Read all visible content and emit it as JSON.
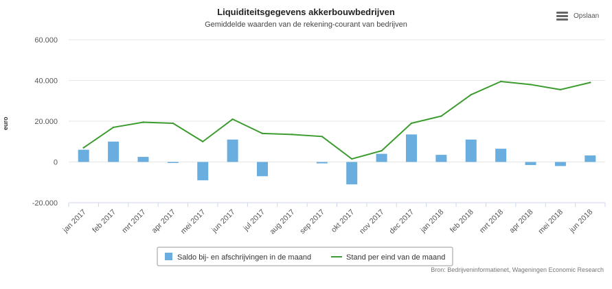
{
  "chart_data": {
    "type": "bar",
    "title": "Liquiditeitsgegevens akkerbouwbedrijven",
    "subtitle": "Gemiddelde waarden van de rekening-courant van bedrijven",
    "ylabel": "euro",
    "ylim": [
      -20000,
      60000
    ],
    "yticks": [
      60000,
      40000,
      20000,
      0,
      -20000
    ],
    "ytick_labels": [
      "60.000",
      "40.000",
      "20.000",
      "0",
      "-20.000"
    ],
    "grid": true,
    "legend_position": "bottom",
    "categories": [
      "jan 2017",
      "feb 2017",
      "mrt 2017",
      "apr 2017",
      "mei 2017",
      "jun 2017",
      "jul 2017",
      "aug 2017",
      "sep 2017",
      "okt 2017",
      "nov 2017",
      "dec 2017",
      "jan 2018",
      "feb 2018",
      "mrt 2018",
      "apr 2018",
      "mei 2018",
      "jun 2018"
    ],
    "series": [
      {
        "name": "Saldo bij- en afschrijvingen in de maand",
        "type": "bar",
        "color": "#6aaee0",
        "values": [
          6000,
          10000,
          2500,
          -500,
          -9000,
          11000,
          -7000,
          0,
          -700,
          -11000,
          4000,
          13500,
          3500,
          11000,
          6500,
          -1500,
          -2000,
          3200
        ]
      },
      {
        "name": "Stand per eind van de maand",
        "type": "line",
        "color": "#3c9b2e",
        "values": [
          7000,
          17000,
          19500,
          19000,
          10000,
          21000,
          14000,
          13500,
          12500,
          1500,
          5500,
          19000,
          22500,
          33000,
          39500,
          38000,
          35500,
          39000
        ]
      }
    ]
  },
  "export": {
    "label": "Opslaan",
    "icon": "hamburger-menu-icon"
  },
  "source": "Bron: Bedrijveninformatienet, Wageningen Economic Research"
}
